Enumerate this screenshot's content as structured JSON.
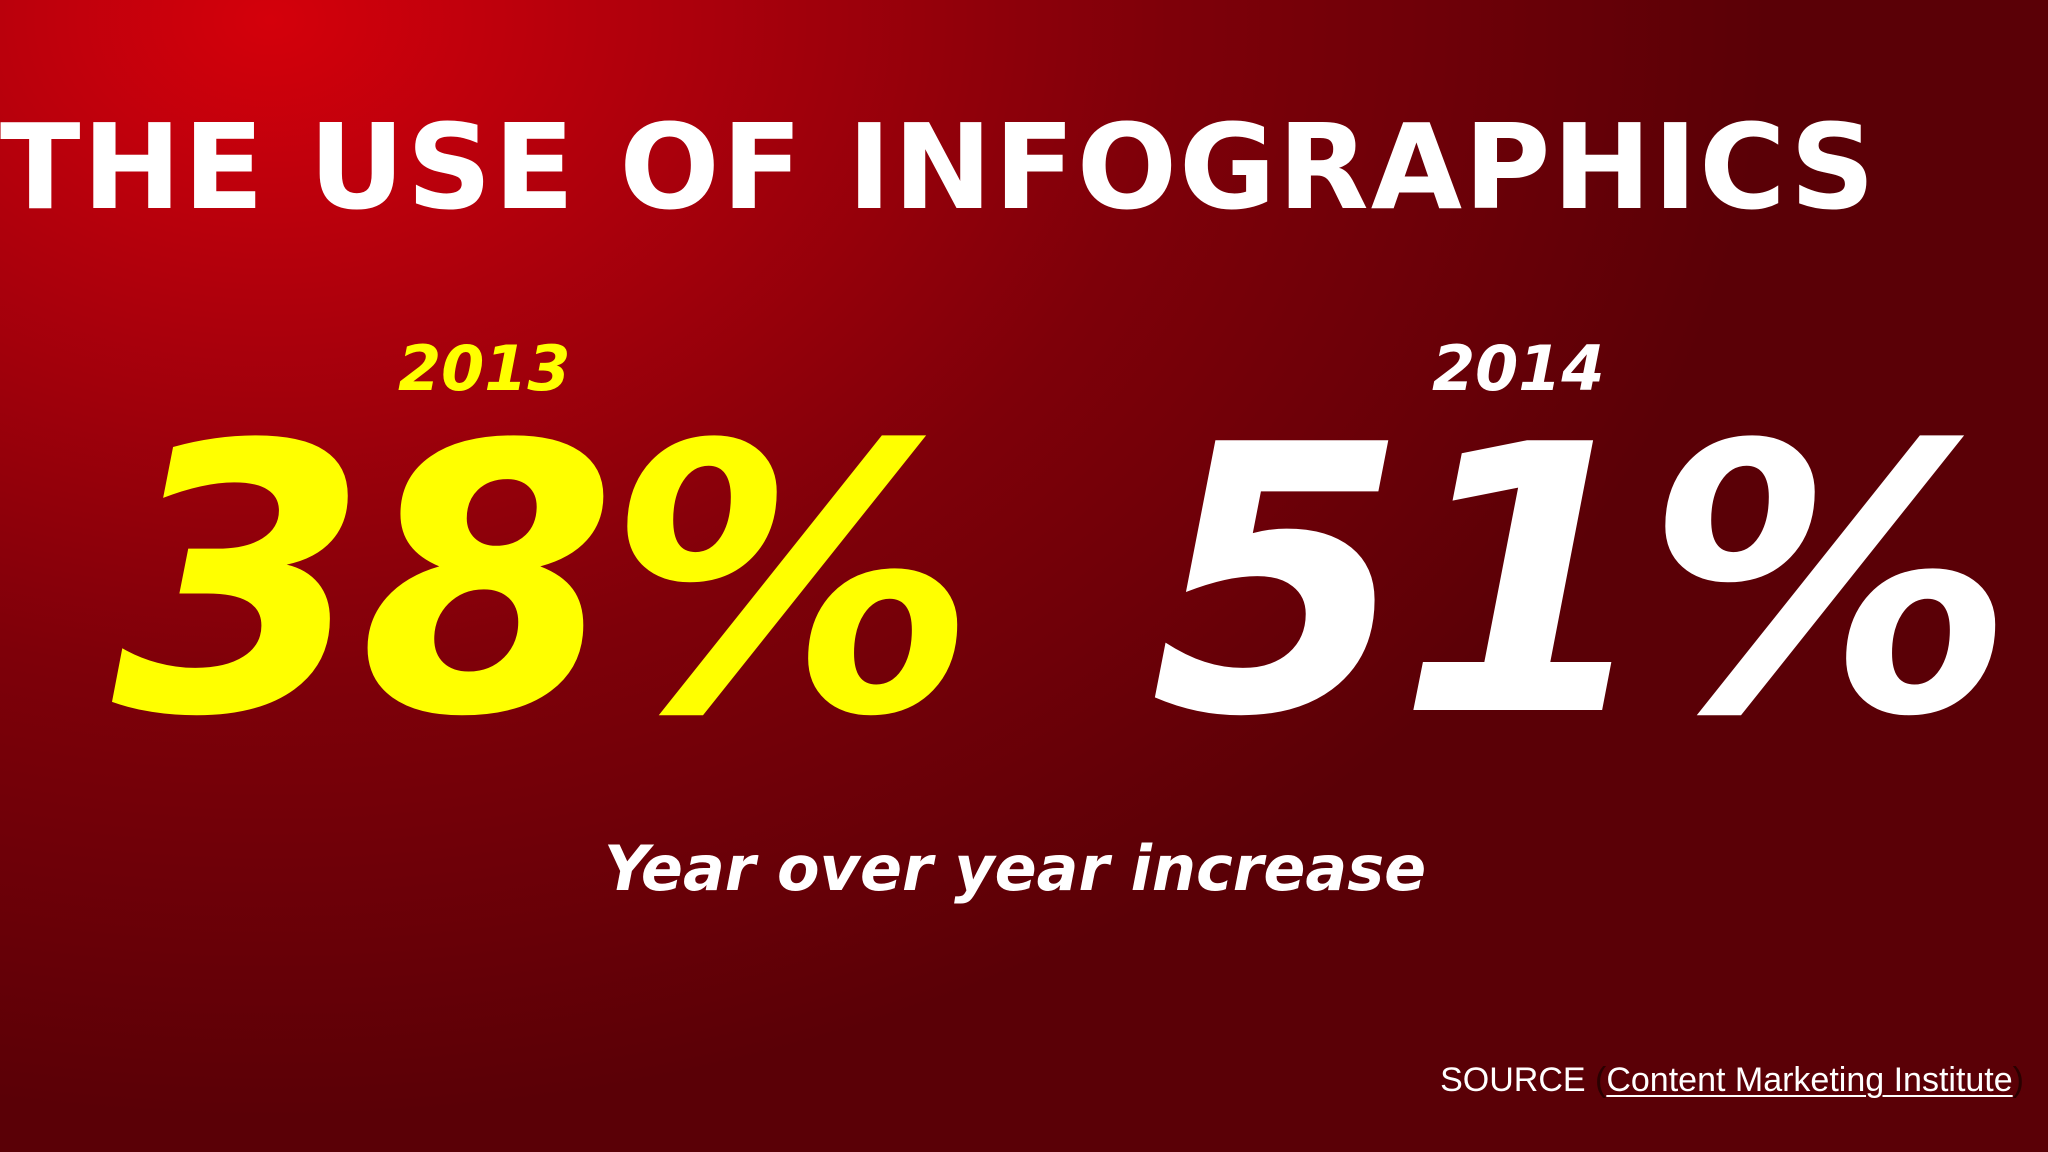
{
  "title": "The use of infographics",
  "stats": [
    {
      "year": "2013",
      "value": "38%",
      "color": "#ffff00"
    },
    {
      "year": "2014",
      "value": "51%",
      "color": "#ffffff"
    }
  ],
  "subtitle": "Year over year increase",
  "source": {
    "label": "SOURCE",
    "open_paren": "(",
    "link_text": "Content Marketing Institute",
    "close_paren": ")"
  },
  "colors": {
    "background_light": "#d4000b",
    "background_dark": "#5a0006",
    "accent_yellow": "#ffff00",
    "text_white": "#ffffff"
  }
}
